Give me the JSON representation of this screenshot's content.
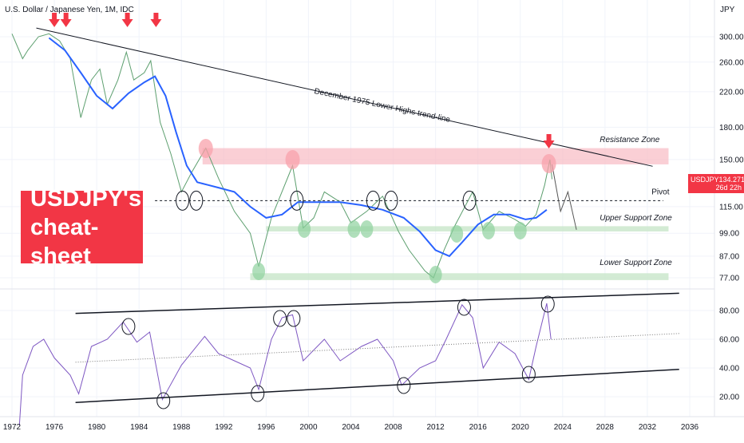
{
  "chart_data": {
    "type": "line",
    "title": "U.S. Dollar / Japanese Yen, 1M, IDC",
    "currency_label": "JPY",
    "symbol": "USDJPY",
    "last_price": "134.271",
    "countdown": "26d 22h",
    "x_ticks": [
      "1972",
      "1976",
      "1980",
      "1984",
      "1988",
      "1992",
      "1996",
      "2000",
      "2004",
      "2008",
      "2012",
      "2016",
      "2020",
      "2024",
      "2028",
      "2032",
      "2036"
    ],
    "price_ticks": [
      "300.00",
      "260.00",
      "220.00",
      "180.00",
      "150.00",
      "115.00",
      "99.00",
      "87.00",
      "77.00"
    ],
    "rsi_ticks": [
      "80.00",
      "60.00",
      "40.00",
      "20.00"
    ],
    "price_scale": "log",
    "price_series": {
      "name": "USDJPY",
      "color": "#5d9f6f",
      "points": [
        [
          1972.0,
          305
        ],
        [
          1973.0,
          265
        ],
        [
          1973.5,
          278
        ],
        [
          1974.5,
          300
        ],
        [
          1975.5,
          305
        ],
        [
          1976.5,
          293
        ],
        [
          1977.5,
          265
        ],
        [
          1978.5,
          190
        ],
        [
          1979.5,
          235
        ],
        [
          1980.3,
          250
        ],
        [
          1981.0,
          205
        ],
        [
          1982.0,
          235
        ],
        [
          1982.8,
          275
        ],
        [
          1983.5,
          235
        ],
        [
          1984.5,
          245
        ],
        [
          1985.1,
          262
        ],
        [
          1986.0,
          185
        ],
        [
          1987.0,
          155
        ],
        [
          1988.0,
          125
        ],
        [
          1989.0,
          140
        ],
        [
          1990.3,
          160
        ],
        [
          1991.5,
          135
        ],
        [
          1993.0,
          112
        ],
        [
          1994.5,
          99
        ],
        [
          1995.3,
          82
        ],
        [
          1996.5,
          108
        ],
        [
          1998.5,
          145
        ],
        [
          1999.5,
          102
        ],
        [
          2000.5,
          108
        ],
        [
          2001.5,
          125
        ],
        [
          2003.0,
          118
        ],
        [
          2004.0,
          105
        ],
        [
          2005.5,
          112
        ],
        [
          2007.0,
          122
        ],
        [
          2008.5,
          100
        ],
        [
          2009.5,
          90
        ],
        [
          2011.0,
          80
        ],
        [
          2011.8,
          77
        ],
        [
          2012.8,
          90
        ],
        [
          2013.8,
          103
        ],
        [
          2015.5,
          125
        ],
        [
          2016.5,
          101
        ],
        [
          2018.0,
          112
        ],
        [
          2019.5,
          107
        ],
        [
          2020.5,
          103
        ],
        [
          2021.5,
          110
        ],
        [
          2022.3,
          130
        ],
        [
          2022.8,
          150
        ],
        [
          2023.0,
          134.3
        ]
      ]
    },
    "ma_series": {
      "name": "moving average",
      "color": "#2962ff",
      "points": [
        [
          1975.5,
          298
        ],
        [
          1977.0,
          278
        ],
        [
          1978.5,
          245
        ],
        [
          1980.0,
          215
        ],
        [
          1981.5,
          200
        ],
        [
          1983.0,
          218
        ],
        [
          1984.5,
          232
        ],
        [
          1985.5,
          240
        ],
        [
          1986.5,
          215
        ],
        [
          1987.5,
          175
        ],
        [
          1988.5,
          145
        ],
        [
          1989.5,
          132
        ],
        [
          1990.5,
          130
        ],
        [
          1991.5,
          128
        ],
        [
          1993.0,
          125
        ],
        [
          1994.5,
          115
        ],
        [
          1996.0,
          108
        ],
        [
          1997.5,
          110
        ],
        [
          1999.0,
          118
        ],
        [
          2001.0,
          118
        ],
        [
          2003.0,
          118
        ],
        [
          2005.0,
          116
        ],
        [
          2007.0,
          113
        ],
        [
          2009.0,
          108
        ],
        [
          2010.5,
          100
        ],
        [
          2012.0,
          90
        ],
        [
          2013.3,
          87
        ],
        [
          2014.5,
          94
        ],
        [
          2016.0,
          104
        ],
        [
          2017.5,
          110
        ],
        [
          2019.0,
          110
        ],
        [
          2020.5,
          107
        ],
        [
          2021.5,
          108
        ],
        [
          2022.5,
          113
        ]
      ]
    },
    "rsi_series": {
      "name": "RSI",
      "color": "#7e57c2",
      "points": [
        [
          1972.7,
          0
        ],
        [
          1973.0,
          35
        ],
        [
          1974.0,
          55
        ],
        [
          1975.0,
          60
        ],
        [
          1976.0,
          47
        ],
        [
          1977.5,
          35
        ],
        [
          1978.3,
          22
        ],
        [
          1979.5,
          55
        ],
        [
          1981.0,
          60
        ],
        [
          1982.5,
          72
        ],
        [
          1983.8,
          58
        ],
        [
          1985.0,
          65
        ],
        [
          1986.2,
          18
        ],
        [
          1988.0,
          42
        ],
        [
          1990.2,
          62
        ],
        [
          1991.5,
          50
        ],
        [
          1993.0,
          45
        ],
        [
          1994.5,
          40
        ],
        [
          1995.3,
          25
        ],
        [
          1996.5,
          60
        ],
        [
          1997.5,
          75
        ],
        [
          1998.5,
          77
        ],
        [
          1999.5,
          45
        ],
        [
          2001.5,
          60
        ],
        [
          2003.0,
          45
        ],
        [
          2005.0,
          55
        ],
        [
          2006.5,
          60
        ],
        [
          2008.0,
          45
        ],
        [
          2008.8,
          28
        ],
        [
          2010.5,
          40
        ],
        [
          2012.0,
          45
        ],
        [
          2013.0,
          60
        ],
        [
          2014.5,
          84
        ],
        [
          2015.5,
          75
        ],
        [
          2016.5,
          40
        ],
        [
          2018.0,
          58
        ],
        [
          2019.5,
          50
        ],
        [
          2020.8,
          32
        ],
        [
          2021.5,
          55
        ],
        [
          2022.5,
          85
        ],
        [
          2022.9,
          60
        ]
      ]
    },
    "annotations": {
      "trendline_label": "December 1975 Lower Highs trend-line",
      "pivot_label": "Pivot",
      "resistance_label": "Resistance Zone",
      "upper_support_label": "Upper Support Zone",
      "lower_support_label": "Lower Support Zone",
      "pivot_level": 119,
      "resistance_zone": [
        146,
        160
      ],
      "upper_support_zone": [
        100,
        103
      ],
      "lower_support_zone": [
        76,
        79
      ],
      "zone_colors": {
        "resistance": "#f8bbc3",
        "support": "#c8e6c9"
      },
      "arrow_color": "#f23645"
    },
    "badge_lines": [
      "USDJPY's",
      "cheat-sheet"
    ],
    "grid": true
  }
}
